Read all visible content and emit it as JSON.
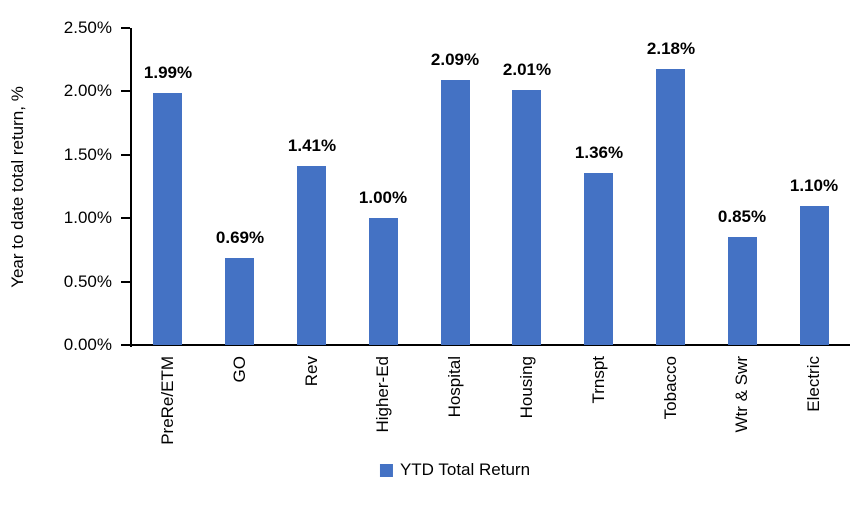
{
  "chart_data": {
    "type": "bar",
    "ylabel": "Year to date total return, %",
    "categories": [
      "PreRe/ETM",
      "GO",
      "Rev",
      "Higher-Ed",
      "Hospital",
      "Housing",
      "Trnspt",
      "Tobacco",
      "Wtr & Swr",
      "Electric"
    ],
    "values": [
      1.99,
      0.69,
      1.41,
      1.0,
      2.09,
      2.01,
      1.36,
      2.18,
      0.85,
      1.1
    ],
    "value_labels": [
      "1.99%",
      "0.69%",
      "1.41%",
      "1.00%",
      "2.09%",
      "2.01%",
      "1.36%",
      "2.18%",
      "0.85%",
      "1.10%"
    ],
    "ytick_labels": [
      "0.00%",
      "0.50%",
      "1.00%",
      "1.50%",
      "2.00%",
      "2.50%"
    ],
    "ytick_step": 0.5,
    "ylim": [
      0,
      2.5
    ],
    "grid": false,
    "legend_position": "bottom",
    "legend": [
      {
        "label": "YTD Total Return",
        "color": "#4472C4"
      }
    ],
    "bar_color": "#4472C4",
    "axis_color": "#000000"
  }
}
